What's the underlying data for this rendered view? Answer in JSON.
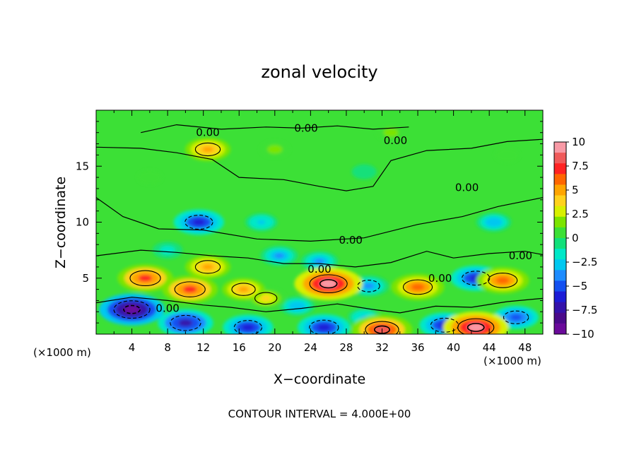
{
  "chart_data": {
    "type": "heatmap",
    "title": "zonal velocity",
    "xlabel": "X−coordinate",
    "ylabel": "Z−coordinate",
    "x_unit": "(×1000 m)",
    "xlim": [
      0,
      50
    ],
    "ylim": [
      0,
      20
    ],
    "x_ticks": [
      4,
      8,
      12,
      16,
      20,
      24,
      28,
      32,
      36,
      40,
      44,
      48
    ],
    "y_ticks": [
      5,
      10,
      15
    ],
    "colorbar": {
      "ticks": [
        "10",
        "7.5",
        "5",
        "2.5",
        "0",
        "−2.5",
        "−5",
        "−7.5",
        "−10"
      ],
      "range": [
        -10,
        10
      ],
      "colors": [
        "#f89aa6",
        "#f05a5a",
        "#ff2222",
        "#ff6600",
        "#ffa500",
        "#ffd21c",
        "#d8f000",
        "#7ce400",
        "#3ce036",
        "#12e07a",
        "#00e8c8",
        "#00c8f0",
        "#1e8cff",
        "#1450f0",
        "#1c1cd6",
        "#3412aa",
        "#4a0a8a",
        "#6a0a9a"
      ]
    },
    "contour_interval_text": "CONTOUR INTERVAL = 4.000E+00",
    "contour_labels": [
      "0.00",
      "0.00",
      "0.00",
      "0.00",
      "0.00",
      "0.00",
      "0.00",
      "0.00",
      "0.00"
    ],
    "features": [
      {
        "x": 5.5,
        "z": 5.0,
        "value": 7.0
      },
      {
        "x": 10.5,
        "z": 4.0,
        "value": 7.0
      },
      {
        "x": 12.5,
        "z": 6.0,
        "value": 5.0
      },
      {
        "x": 16.5,
        "z": 4.0,
        "value": 4.5
      },
      {
        "x": 19.0,
        "z": 3.2,
        "value": 4.0
      },
      {
        "x": 26.0,
        "z": 4.5,
        "value": 9.5
      },
      {
        "x": 36.0,
        "z": 4.2,
        "value": 6.5
      },
      {
        "x": 45.5,
        "z": 4.8,
        "value": 6.5
      },
      {
        "x": 32.0,
        "z": 0.4,
        "value": 8.0
      },
      {
        "x": 42.5,
        "z": 0.6,
        "value": 9.0
      },
      {
        "x": 12.5,
        "z": 16.5,
        "value": 5.0
      },
      {
        "x": 4.0,
        "z": 2.2,
        "value": -9.0
      },
      {
        "x": 10.0,
        "z": 1.0,
        "value": -7.0
      },
      {
        "x": 17.0,
        "z": 0.6,
        "value": -6.0
      },
      {
        "x": 25.5,
        "z": 0.6,
        "value": -6.5
      },
      {
        "x": 39.0,
        "z": 0.8,
        "value": -6.0
      },
      {
        "x": 11.5,
        "z": 10.0,
        "value": -6.0
      },
      {
        "x": 42.5,
        "z": 5.0,
        "value": -6.0
      },
      {
        "x": 47.0,
        "z": 1.5,
        "value": -5.0
      },
      {
        "x": 30.5,
        "z": 4.3,
        "value": -4.0
      },
      {
        "x": 18.5,
        "z": 10.0,
        "value": -2.5
      },
      {
        "x": 20.5,
        "z": 7.0,
        "value": -3.5
      },
      {
        "x": 25.0,
        "z": 6.5,
        "value": -3.5
      },
      {
        "x": 22.5,
        "z": 2.5,
        "value": -3.0
      },
      {
        "x": 8.0,
        "z": 7.5,
        "value": -2.0
      },
      {
        "x": 30.0,
        "z": 14.5,
        "value": -1.0
      },
      {
        "x": 44.5,
        "z": 10.0,
        "value": -3.0
      },
      {
        "x": 30.0,
        "z": 1.5,
        "value": -2.5
      },
      {
        "x": 20.0,
        "z": 16.5,
        "value": 2.0
      },
      {
        "x": 33.0,
        "z": 18.0,
        "value": 2.0
      },
      {
        "x": 6.0,
        "z": 14.0,
        "value": 1.0
      },
      {
        "x": 46.0,
        "z": 16.0,
        "value": 1.0
      }
    ]
  }
}
